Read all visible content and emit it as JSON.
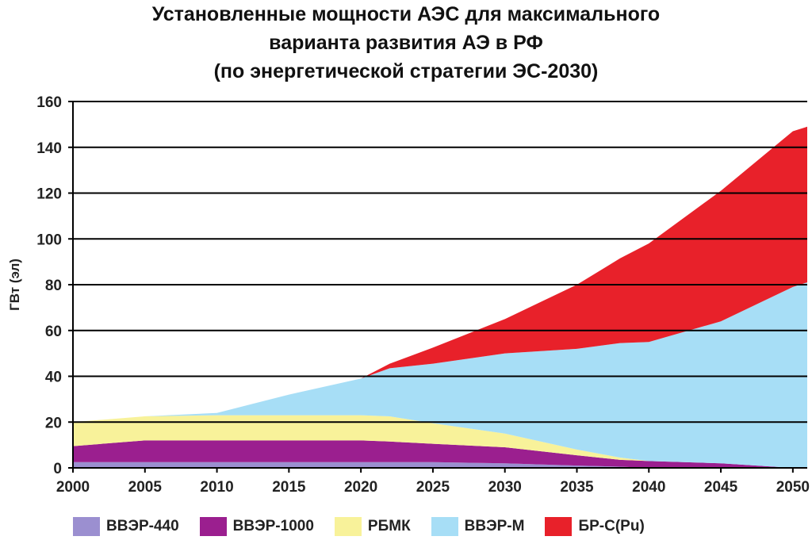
{
  "title_lines": [
    "Установленные мощности АЭС для максимального",
    "варианта развития АЭ в РФ",
    "(по энергетической стратегии ЭС-2030)"
  ],
  "chart_data": {
    "type": "area",
    "stacked": true,
    "title": "Установленные мощности АЭС для максимального варианта развития АЭ в РФ (по энергетической стратегии ЭС-2030)",
    "xlabel": "",
    "ylabel": "ГВт (эл)",
    "ylim": [
      0,
      160
    ],
    "yticks": [
      0,
      20,
      40,
      60,
      80,
      100,
      120,
      140,
      160
    ],
    "xticks": [
      "2000",
      "2005",
      "2010",
      "2015",
      "2020",
      "2025",
      "2030",
      "2035",
      "2040",
      "2045",
      "2050"
    ],
    "x": [
      2000,
      2005,
      2010,
      2015,
      2020,
      2022,
      2025,
      2030,
      2035,
      2038,
      2040,
      2045,
      2050,
      2051
    ],
    "grid": true,
    "legend_position": "bottom",
    "series": [
      {
        "name": "ВВЭР-440",
        "color": "#9b8fd0",
        "values": [
          2.5,
          2.5,
          2.5,
          2.5,
          2.5,
          2.5,
          2.5,
          2.0,
          1.0,
          0.5,
          0,
          0,
          0,
          0
        ]
      },
      {
        "name": "ВВЭР-1000",
        "color": "#9b1f8f",
        "values": [
          7,
          9.5,
          9.5,
          9.5,
          9.5,
          9,
          8,
          7,
          4.5,
          3,
          3,
          2,
          0,
          0
        ]
      },
      {
        "name": "РБМК",
        "color": "#f8f29a",
        "values": [
          10.5,
          10.5,
          11,
          11,
          11,
          11,
          9,
          6,
          2.5,
          1,
          0,
          0,
          0,
          0
        ]
      },
      {
        "name": "ВВЭР-М",
        "color": "#a7def6",
        "values": [
          0,
          0,
          1,
          9,
          16,
          21,
          26,
          35,
          44,
          50,
          52,
          62,
          79,
          81
        ]
      },
      {
        "name": "БР-С(Pu)",
        "color": "#e8212a",
        "values": [
          0,
          0,
          0,
          0,
          0,
          2,
          7,
          15,
          28,
          37,
          43,
          57,
          68,
          68
        ]
      }
    ]
  }
}
